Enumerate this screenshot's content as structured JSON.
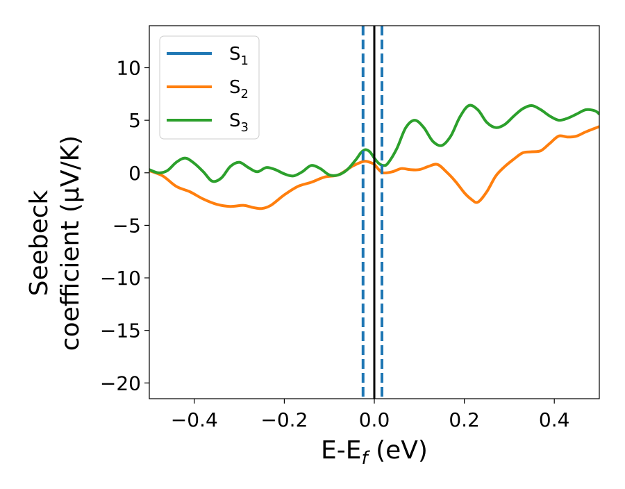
{
  "chart_data": {
    "type": "line",
    "xlabel_main": "E-E",
    "xlabel_sub": "f",
    "xlabel_unit": " (eV)",
    "ylabel_line1": "Seebeck",
    "ylabel_line2": "coefficient  (μV/K)",
    "xlim": [
      -0.5,
      0.5
    ],
    "ylim": [
      -21.5,
      14
    ],
    "xticks": [
      -0.4,
      -0.2,
      0.0,
      0.2,
      0.4
    ],
    "xtick_labels": [
      "−0.4",
      "−0.2",
      "0.0",
      "0.2",
      "0.4"
    ],
    "yticks": [
      10,
      5,
      0,
      -5,
      -10,
      -15,
      -20
    ],
    "ytick_labels": [
      "10",
      "5",
      "0",
      "−5",
      "−10",
      "−15",
      "−20"
    ],
    "legend_position": "upper-left",
    "grid": false,
    "vertical_lines": [
      {
        "x": 0.0,
        "style": "solid",
        "color": "#000000"
      },
      {
        "x": -0.025,
        "style": "dashed",
        "color": "#1f77b4"
      },
      {
        "x": 0.017,
        "style": "dashed",
        "color": "#1f77b4"
      }
    ],
    "series": [
      {
        "name": "S",
        "subscript": "1",
        "color": "#1f77b4",
        "x": [],
        "y": []
      },
      {
        "name": "S",
        "subscript": "2",
        "color": "#ff7f0e",
        "x": [
          -0.5,
          -0.47,
          -0.44,
          -0.41,
          -0.38,
          -0.35,
          -0.32,
          -0.29,
          -0.27,
          -0.25,
          -0.23,
          -0.2,
          -0.17,
          -0.14,
          -0.11,
          -0.08,
          -0.05,
          -0.03,
          -0.02,
          -0.01,
          0.0,
          0.01,
          0.02,
          0.04,
          0.06,
          0.08,
          0.1,
          0.12,
          0.14,
          0.16,
          0.18,
          0.2,
          0.215,
          0.23,
          0.25,
          0.27,
          0.29,
          0.31,
          0.33,
          0.35,
          0.37,
          0.39,
          0.41,
          0.43,
          0.45,
          0.47,
          0.5
        ],
        "y": [
          0.2,
          -0.3,
          -1.3,
          -1.8,
          -2.5,
          -3.0,
          -3.2,
          -3.1,
          -3.3,
          -3.4,
          -3.1,
          -2.1,
          -1.3,
          -0.9,
          -0.4,
          -0.2,
          0.6,
          1.0,
          1.1,
          1.0,
          0.8,
          0.3,
          0.0,
          0.1,
          0.4,
          0.3,
          0.3,
          0.6,
          0.8,
          0.1,
          -0.8,
          -1.9,
          -2.5,
          -2.8,
          -1.8,
          -0.3,
          0.6,
          1.3,
          1.9,
          2.0,
          2.1,
          2.8,
          3.5,
          3.4,
          3.5,
          3.9,
          4.4
        ]
      },
      {
        "name": "S",
        "subscript": "3",
        "color": "#2ca02c",
        "x": [
          -0.5,
          -0.48,
          -0.46,
          -0.44,
          -0.42,
          -0.4,
          -0.38,
          -0.36,
          -0.34,
          -0.32,
          -0.3,
          -0.28,
          -0.26,
          -0.24,
          -0.22,
          -0.2,
          -0.18,
          -0.16,
          -0.14,
          -0.12,
          -0.1,
          -0.08,
          -0.06,
          -0.04,
          -0.03,
          -0.02,
          -0.01,
          0.0,
          0.01,
          0.02,
          0.03,
          0.05,
          0.07,
          0.09,
          0.11,
          0.13,
          0.15,
          0.17,
          0.19,
          0.21,
          0.23,
          0.25,
          0.27,
          0.29,
          0.31,
          0.33,
          0.35,
          0.37,
          0.39,
          0.41,
          0.43,
          0.45,
          0.47,
          0.49,
          0.5
        ],
        "y": [
          0.3,
          0.0,
          0.2,
          1.0,
          1.4,
          0.9,
          0.1,
          -0.8,
          -0.5,
          0.6,
          1.0,
          0.5,
          0.1,
          0.5,
          0.3,
          -0.1,
          -0.3,
          0.1,
          0.7,
          0.4,
          -0.2,
          -0.2,
          0.3,
          1.3,
          1.9,
          2.2,
          2.0,
          1.4,
          0.9,
          0.7,
          0.9,
          2.3,
          4.3,
          5.0,
          4.3,
          3.0,
          2.6,
          3.5,
          5.3,
          6.4,
          6.0,
          4.8,
          4.3,
          4.6,
          5.4,
          6.1,
          6.4,
          6.0,
          5.4,
          5.0,
          5.2,
          5.6,
          6.0,
          5.9,
          5.6
        ]
      }
    ]
  }
}
